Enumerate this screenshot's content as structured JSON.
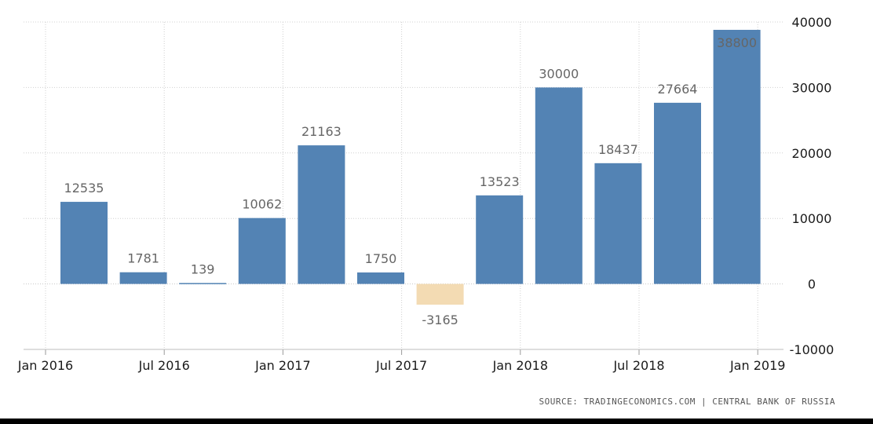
{
  "chart_data": {
    "type": "bar",
    "categories": [
      "2016-Q1",
      "2016-Q2",
      "2016-Q3",
      "2016-Q4",
      "2017-Q1",
      "2017-Q2",
      "2017-Q3",
      "2017-Q4",
      "2018-Q1",
      "2018-Q2",
      "2018-Q3",
      "2018-Q4"
    ],
    "values": [
      12535,
      1781,
      139,
      10062,
      21163,
      1750,
      -3165,
      13523,
      30000,
      18437,
      27664,
      38800
    ],
    "data_labels": [
      "12535",
      "1781",
      "139",
      "10062",
      "21163",
      "1750",
      "-3165",
      "13523",
      "30000",
      "18437",
      "27664",
      "38800"
    ],
    "x_ticks": [
      "Jan 2016",
      "Jul 2016",
      "Jan 2017",
      "Jul 2017",
      "Jan 2018",
      "Jul 2018",
      "Jan 2019"
    ],
    "y_ticks": [
      40000,
      30000,
      20000,
      10000,
      0,
      -10000
    ],
    "ylim": [
      -10000,
      40000
    ],
    "y_axis_side": "right",
    "grid": true,
    "colors": {
      "positive": "#5383b4",
      "negative": "#f3dbb3"
    },
    "source": "SOURCE: TRADINGECONOMICS.COM | CENTRAL BANK OF RUSSIA"
  }
}
